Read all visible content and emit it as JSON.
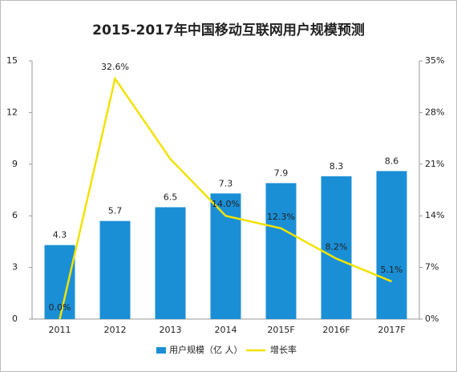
{
  "chart_data": {
    "type": "bar_line",
    "title": "2015-2017年中国移动互联网用户规模预测",
    "categories": [
      "2011",
      "2012",
      "2013",
      "2014",
      "2015F",
      "2016F",
      "2017F"
    ],
    "series": [
      {
        "name": "用户规模（亿 人）",
        "color": "#1b8fd6",
        "type": "bar",
        "values": [
          4.3,
          5.7,
          6.5,
          7.3,
          7.9,
          8.3,
          8.6
        ]
      },
      {
        "name": "增长率",
        "color": "#f2e200",
        "type": "line",
        "axis": "y2",
        "values": [
          0.0,
          32.6,
          21.7,
          14.0,
          12.3,
          8.2,
          5.1
        ],
        "value_labels": [
          "0.0%",
          "32.6%",
          null,
          "14.0%",
          "12.3%",
          "8.2%",
          "5.1%"
        ]
      }
    ],
    "ylim": [
      0,
      15
    ],
    "yticks": [
      0,
      3,
      6,
      9,
      12,
      15
    ],
    "y2lim": [
      0,
      35
    ],
    "y2ticks": [
      {
        "value": 0,
        "label": "0%"
      },
      {
        "value": 7,
        "label": "7%"
      },
      {
        "value": 14,
        "label": "14%"
      },
      {
        "value": 21,
        "label": "21%"
      },
      {
        "value": 28,
        "label": "28%"
      },
      {
        "value": 35,
        "label": "35%"
      }
    ],
    "legend": "bottom",
    "grid": false
  }
}
